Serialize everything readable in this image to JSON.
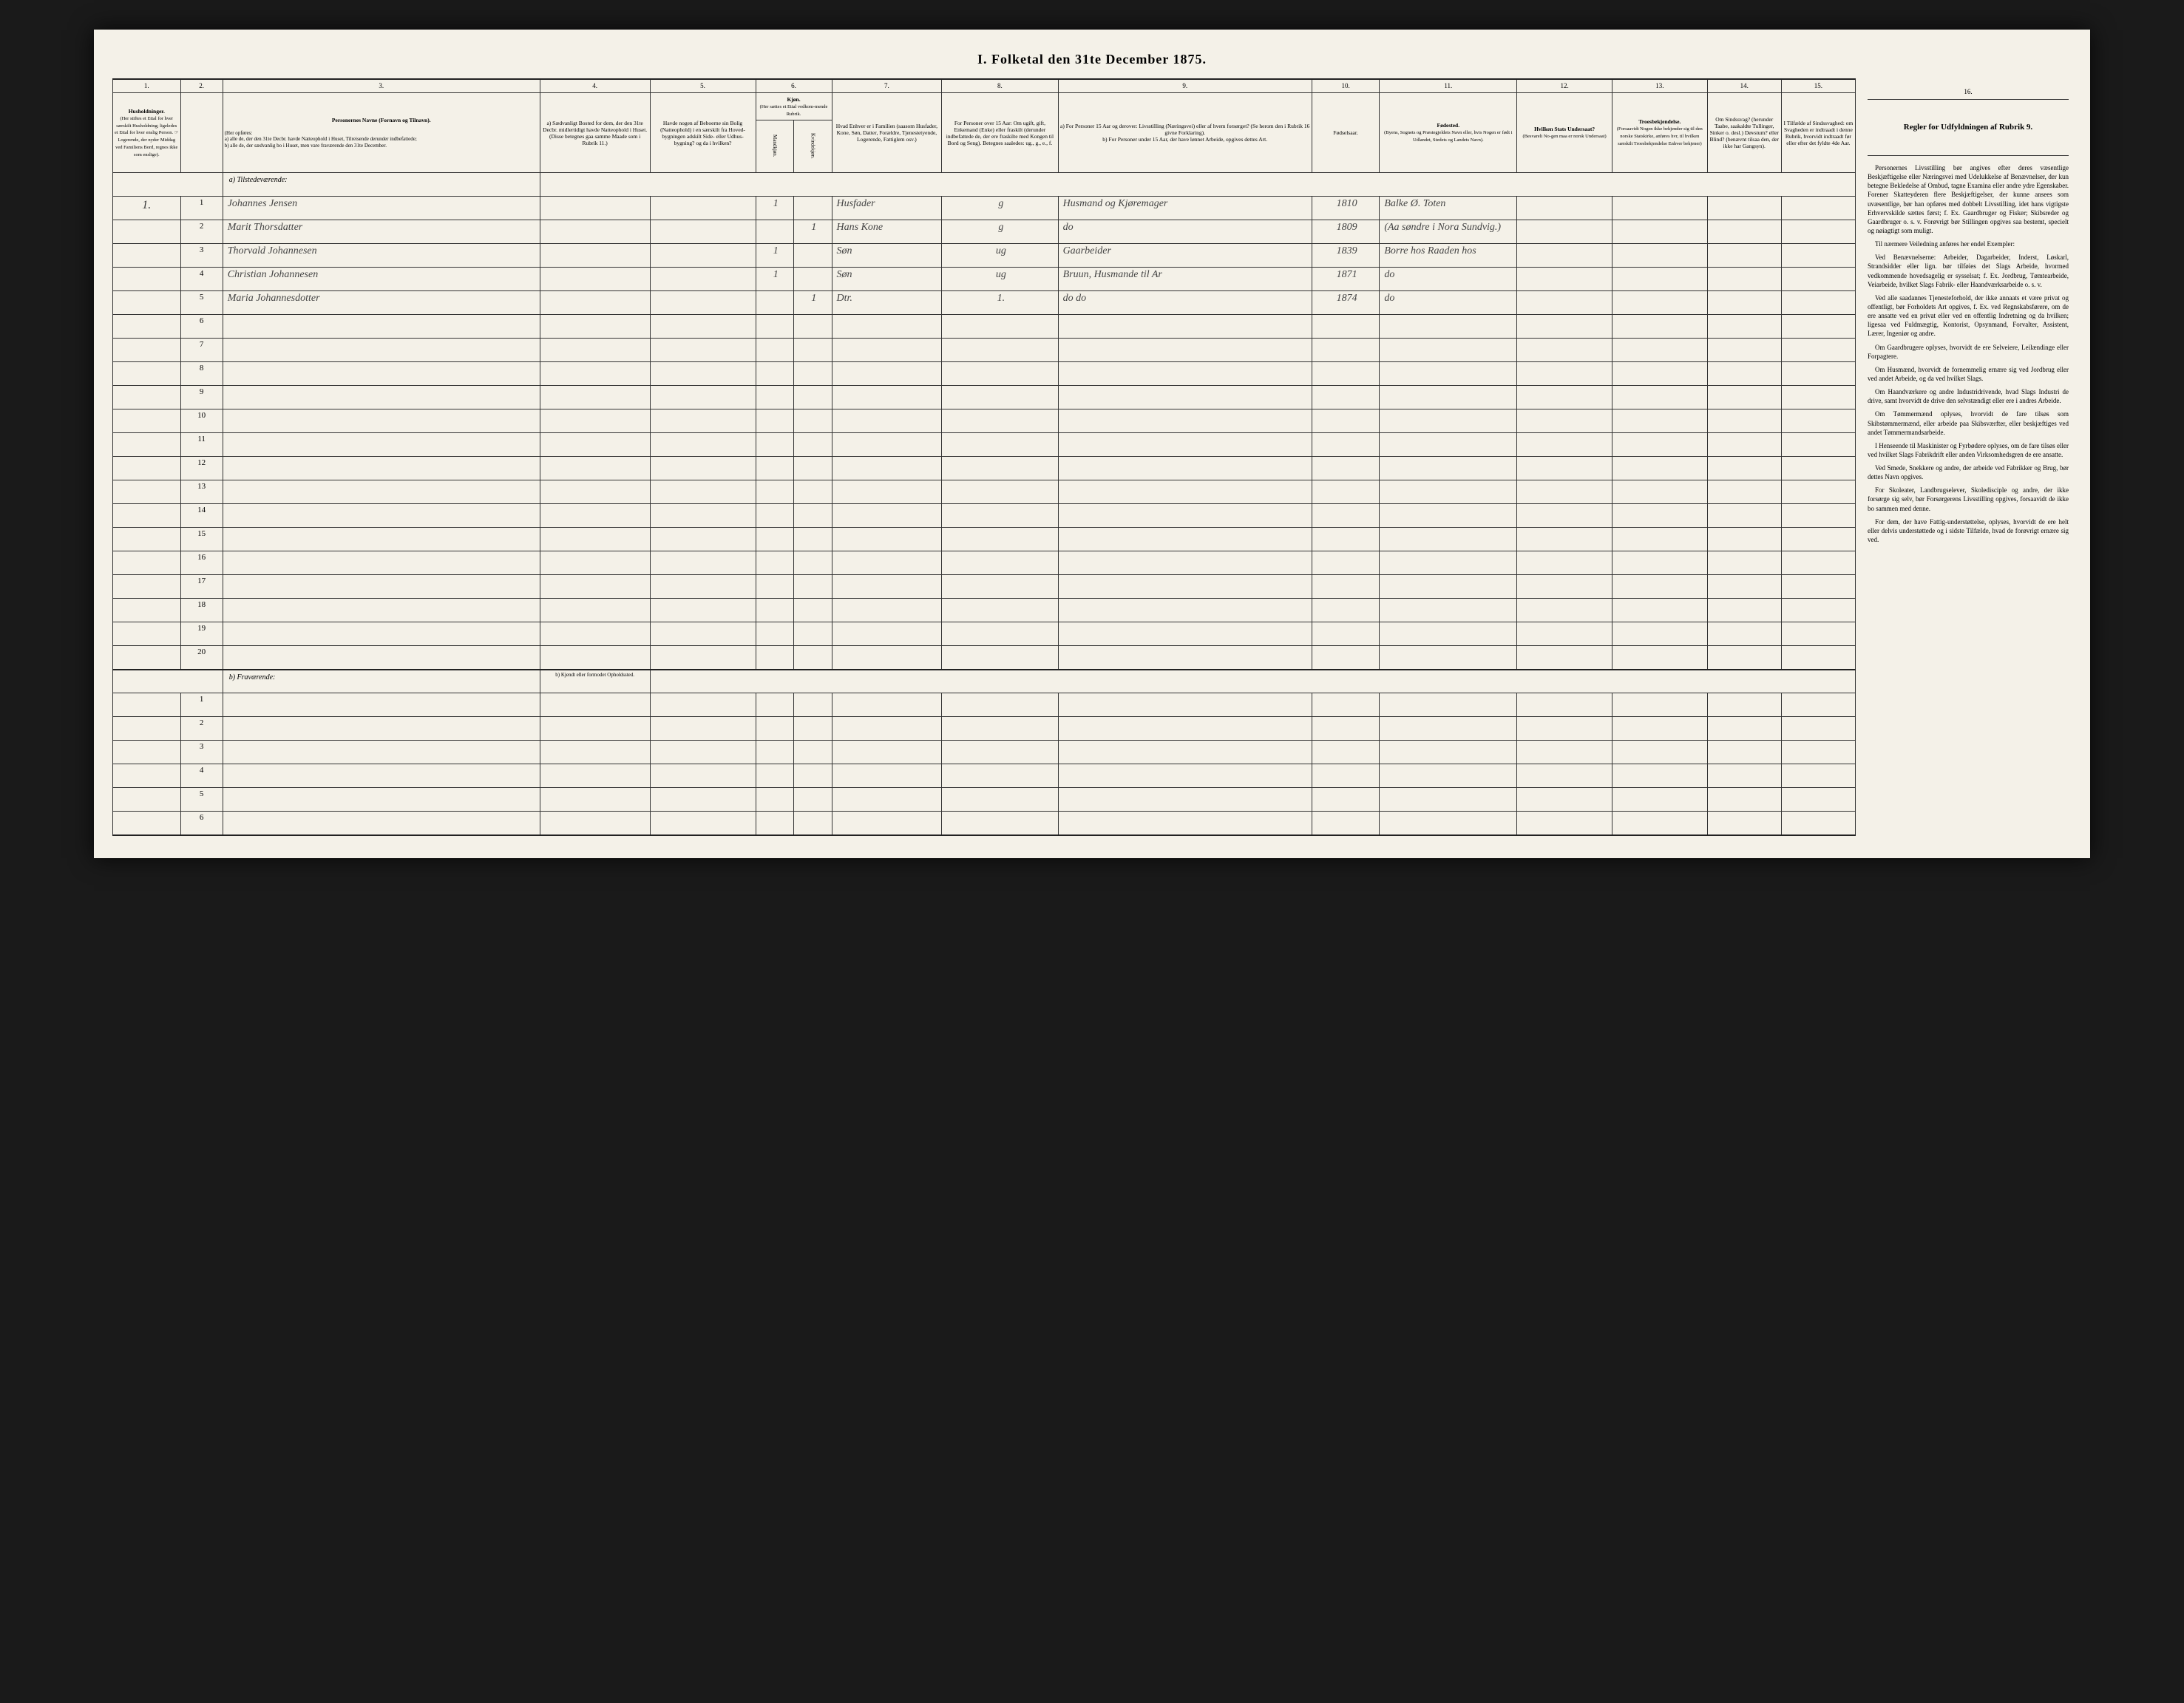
{
  "title": "I. Folketal den 31te December 1875.",
  "columns": {
    "nums": [
      "1.",
      "2.",
      "3.",
      "4.",
      "5.",
      "6.",
      "7.",
      "8.",
      "9.",
      "10.",
      "11.",
      "12.",
      "13.",
      "14.",
      "15.",
      "16."
    ],
    "h1": "Husholdninger.",
    "h1_sub": "(Her stiftes et Ettal for hver særskilt Husholdning; ligeledes et Ettal for hver enslig Person. ☞ Logerende, der nyder Middag ved Familiens Bord, regnes ikke som enslige).",
    "h3": "Personernes Navne (Fornavn og Tilnavn).",
    "h3_sub": "(Her opføres:\na) alle de, der den 31te Decbr. havde Natteophold i Huset, Tilreisende derunder indbefattede;\nb) alle de, der sædvanlig bo i Huset, men vare fraværende den 31te December.",
    "h4": "a) Sædvanligt Bosted for dem, der den 31te Decbr. midlertidigt havde Natteophold i Huset. (Disse betegnes gaa samme Maade som i Rubrik 11.)",
    "h5": "Havde nogen af Beboerne sin Bolig (Natteophold) i en særskilt fra Hoved-bygningen adskilt Side- eller Udhus-bygning? og da i hvilken?",
    "h6": "Kjøn.",
    "h6_sub": "(Her sættes et Ettal vedkom-mende Rubrik.",
    "h6a": "Mandkjøn.",
    "h6b": "Kvindekjøn.",
    "h7": "Hvad Enhver er i Familien (saasom Husfader, Kone, Søn, Datter, Forældre, Tjenestetyende, Logerende, Fattiglem osv.)",
    "h8": "For Personer over 15 Aar: Om ugift, gift, Enkemand (Enke) eller fraskilt (derunder indbefattede de, der ere fraskilte med Kongen til Bord og Seng). Betegnes saaledes: ug., g., e., f.",
    "h9": "a) For Personer 15 Aar og derover: Livsstilling (Næringsvei) eller af hvem forsørget? (Se herom den i Rubrik 16 givne Forklaring).\nb) For Personer under 15 Aar, der have lønnet Arbeide, opgives dettes Art.",
    "h10": "Fødselsaar.",
    "h11": "Fødested.",
    "h11_sub": "(Byens, Sognets og Præstegjeldets Navn eller, hvis Nogen er født i Udlandet, Stedets og Landets Navn).",
    "h12": "Hvilken Stats Undersaat?",
    "h12_sub": "(Besvareli No-gen maa er norsk Undersaat)",
    "h13": "Troesbekjendelse.",
    "h13_sub": "(Forsaavidt Nogen ikke bekjender sig til den norske Statskirke, anføres hvr, til hvilken særskilt Troesbekjendelse Enhver bekjener)",
    "h14": "Om Sindssvag? (herunder Taabe, saakaldte Tullinger, Sinker o. desl.) Døvstum? eller Blind? (benævnt tilsaa den, der ikke har Gangsyn).",
    "h15": "I Tilfælde af Sindssvaghed: om Svagheden er indtraadt i denne Rubrik, hvorvidt indtraadt før eller efter det fyldte 4de Aar.",
    "h16": "Regler for Udfyldningen af Rubrik 9."
  },
  "section_a": "a) Tilstedeværende:",
  "section_b": "b) Fraværende:",
  "section_b_col4": "b) Kjendt eller formodet Opholdssted.",
  "rows_a": [
    {
      "hh": "1.",
      "n": "1",
      "name": "Johannes Jensen",
      "c6a": "1",
      "c6b": "",
      "c7": "Husfader",
      "c8": "g",
      "c9": "Husmand og Kjøremager",
      "c10": "1810",
      "c11": "Balke Ø. Toten"
    },
    {
      "hh": "",
      "n": "2",
      "name": "Marit Thorsdatter",
      "c6a": "",
      "c6b": "1",
      "c7": "Hans Kone",
      "c8": "g",
      "c9": "do",
      "c10": "1809",
      "c11": "(Aa søndre i Nora Sundvig.)"
    },
    {
      "hh": "",
      "n": "3",
      "name": "Thorvald Johannesen",
      "c6a": "1",
      "c6b": "",
      "c7": "Søn",
      "c8": "ug",
      "c9": "Gaarbeider",
      "c10": "1839",
      "c11": "Borre hos Raaden hos"
    },
    {
      "hh": "",
      "n": "4",
      "name": "Christian Johannesen",
      "c6a": "1",
      "c6b": "",
      "c7": "Søn",
      "c8": "ug",
      "c9": "Bruun, Husmande til Ar",
      "c10": "1871",
      "c11": "do"
    },
    {
      "hh": "",
      "n": "5",
      "name": "Maria Johannesdotter",
      "c6a": "",
      "c6b": "1",
      "c7": "Dtr.",
      "c8": "1.",
      "c9": "do do",
      "c10": "1874",
      "c11": "do"
    }
  ],
  "blank_a": [
    "6",
    "7",
    "8",
    "9",
    "10",
    "11",
    "12",
    "13",
    "14",
    "15",
    "16",
    "17",
    "18",
    "19",
    "20"
  ],
  "blank_b": [
    "1",
    "2",
    "3",
    "4",
    "5",
    "6"
  ],
  "instructions": {
    "heading": "Regler for Udfyldningen af Rubrik 9.",
    "paras": [
      "Personernes Livsstilling bør angives efter deres væsentlige Beskjæftigelse eller Næringsvei med Udelukkelse af Benævnelser, der kun betegne Bekledelse af Ombud, tagne Examina eller andre ydre Egenskaber. Forener Skatteyderen flere Beskjæftigelser, der kunne ansees som uvæsentlige, bør han opføres med dobbelt Livsstilling, idet hans vigtigste Erhvervskilde sættes først; f. Ex. Gaardbruger og Fisker; Skibsreder og Gaardbruger o. s. v. Forøvrigt bør Stillingen opgives saa bestemt, specielt og nøiagtigt som muligt.",
      "Til nærmere Veiledning anføres her endel Exempler:",
      "Ved Benævnelserne: Arbeider, Dagarbeider, Inderst, Løskarl, Strandsidder eller lign. bør tilføies det Slags Arbeide, hvormed vedkommende hovedsagelig er sysselsat; f. Ex. Jordbrug, Tømtearbeide, Veiarbeide, hvilket Slags Fabrik- eller Haandværksarbeide o. s. v.",
      "Ved alle saadannes Tjenesteforhold, der ikke annaats et være privat og offentligt, bør Forholdets Art opgives, f. Ex. ved Regnskabsførere, om de ere ansatte ved en privat eller ved en offentlig Indretning og da hvilken; ligesaa ved Fuldmægtig, Kontorist, Opsynmand, Forvalter, Assistent, Lærer, Ingeniør og andre.",
      "Om Gaardbrugere oplyses, hvorvidt de ere Selveiere, Leilændinge eller Forpagtere.",
      "Om Husmænd, hvorvidt de fornemmelig ernære sig ved Jordbrug eller ved andet Arbeide, og da ved hvilket Slags.",
      "Om Haandværkere og andre Industridrivende, hvad Slags Industri de drive, samt hvorvidt de drive den selvstændigt eller ere i andres Arbeide.",
      "Om Tømmermænd oplyses, hvorvidt de fare tilsøs som Skibstømmermænd, eller arbeide paa Skibsværfter, eller beskjæftiges ved andet Tømmermandsarbeide.",
      "I Henseende til Maskinister og Fyrbødere oplyses, om de fare tilsøs eller ved hvilket Slags Fabrikdrift eller anden Virksomhedsgren de ere ansatte.",
      "Ved Smede, Snekkere og andre, der arbeide ved Fabrikker og Brug, bør dettes Navn opgives.",
      "For Skoleater, Landbrugselever, Skoledisciple og andre, der ikke forsørge sig selv, bør Forsørgerens Livsstilling opgives, forsaavidt de ikke bo sammen med denne.",
      "For dem, der have Fattig-understøttelse, oplyses, hvorvidt de ere helt eller delvis understøttede og i sidste Tilfælde, hvad de forøvrigt ernære sig ved."
    ]
  },
  "colors": {
    "paper": "#f4f1e8",
    "ink": "#333333",
    "border": "#333333",
    "background": "#1a1a1a",
    "handwriting": "#444444"
  }
}
